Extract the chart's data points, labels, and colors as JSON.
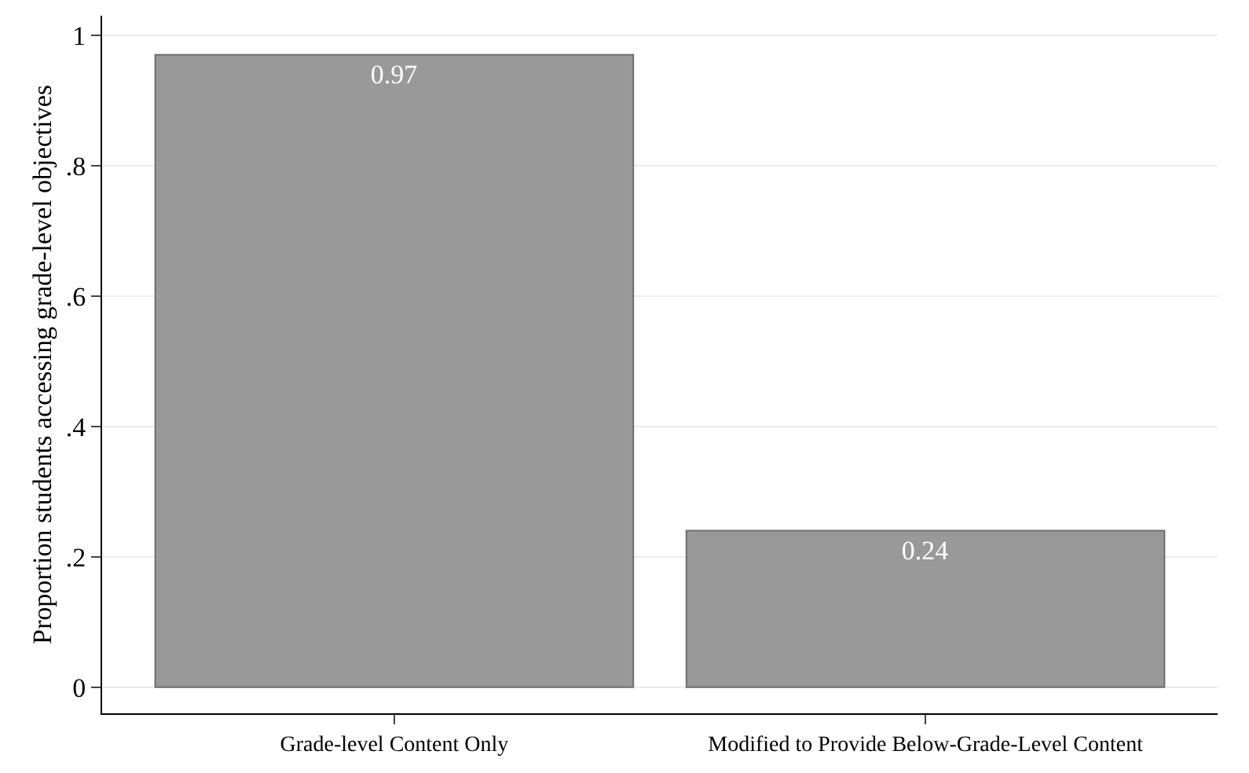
{
  "chart_data": {
    "type": "bar",
    "ylabel": "Proportion students accessing grade-level objectives",
    "categories": [
      "Grade-level Content Only",
      "Modified to Provide Below-Grade-Level Content"
    ],
    "values": [
      0.97,
      0.24
    ],
    "color": "#999999",
    "value_labels": [
      "0.97",
      "0.24"
    ],
    "ylim": [
      -0.04,
      1.03
    ],
    "yticks": [
      {
        "value": 0,
        "label": "0"
      },
      {
        "value": 0.2,
        "label": ".2"
      },
      {
        "value": 0.4,
        "label": ".4"
      },
      {
        "value": 0.6,
        "label": ".6"
      },
      {
        "value": 0.8,
        "label": ".8"
      },
      {
        "value": 1,
        "label": "1"
      }
    ],
    "grid": "y"
  }
}
